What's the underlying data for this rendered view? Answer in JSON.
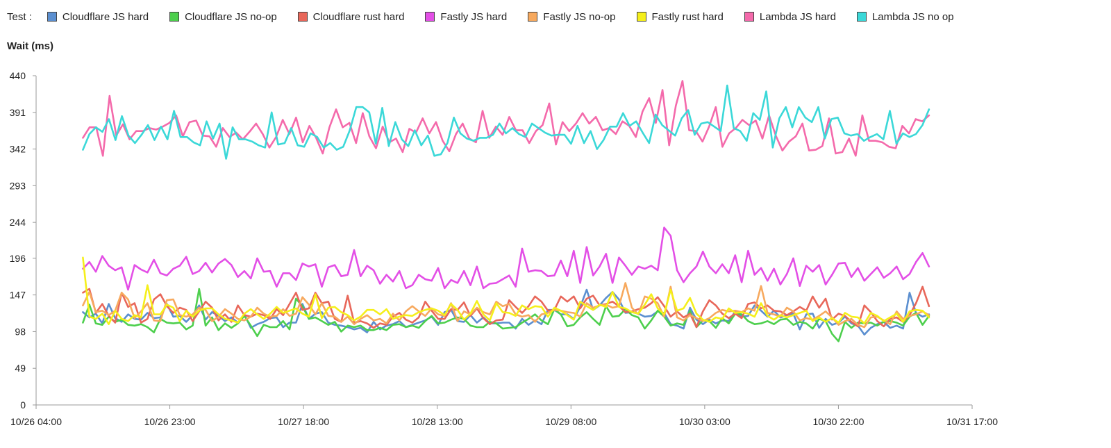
{
  "chart_data": {
    "type": "line",
    "legend_title": "Test :",
    "ylabel": "Wait (ms)",
    "xlabel": "",
    "ylim": [
      0,
      440
    ],
    "y_ticks": [
      "0",
      "49",
      "98",
      "147",
      "196",
      "244",
      "293",
      "342",
      "391",
      "440"
    ],
    "x_ticks": [
      "10/26 04:00",
      "10/26 23:00",
      "10/27 18:00",
      "10/28 13:00",
      "10/29 08:00",
      "10/30 03:00",
      "10/30 22:00",
      "10/31 17:00"
    ],
    "x_range_hours": [
      0,
      154
    ],
    "x_start_hours": 7.7,
    "x_end_hours": 146.9,
    "legend_position": "top",
    "grid": false,
    "series": [
      {
        "name": "Cloudflare JS hard",
        "color": "#5b8fd0",
        "values": [
          124,
          117,
          122,
          109,
          135,
          116,
          111,
          121,
          115,
          114,
          123,
          116,
          117,
          135,
          118,
          119,
          111,
          120,
          133,
          114,
          124,
          119,
          112,
          117,
          110,
          121,
          103,
          108,
          111,
          116,
          117,
          104,
          110,
          110,
          135,
          115,
          122,
          124,
          110,
          107,
          106,
          104,
          101,
          103,
          97,
          111,
          101,
          106,
          108,
          112,
          104,
          107,
          110,
          113,
          118,
          107,
          124,
          127,
          112,
          111,
          120,
          110,
          117,
          109,
          109,
          110,
          110,
          102,
          115,
          107,
          113,
          108,
          127,
          127,
          121,
          121,
          115,
          131,
          154,
          127,
          133,
          143,
          151,
          141,
          123,
          124,
          122,
          118,
          119,
          125,
          123,
          108,
          106,
          102,
          130,
          114,
          108,
          114,
          109,
          113,
          112,
          125,
          118,
          119,
          133,
          126,
          118,
          126,
          117,
          120,
          122,
          101,
          121,
          122,
          103,
          115,
          107,
          110,
          118,
          109,
          106,
          94,
          103,
          108,
          111,
          103,
          106,
          102,
          150,
          123,
          118,
          121
        ]
      },
      {
        "name": "Cloudflare JS no-op",
        "color": "#4dcf4d",
        "values": [
          110,
          134,
          109,
          107,
          118,
          111,
          114,
          107,
          106,
          108,
          104,
          97,
          115,
          110,
          109,
          110,
          101,
          106,
          155,
          106,
          117,
          100,
          109,
          103,
          109,
          119,
          106,
          92,
          107,
          104,
          104,
          112,
          101,
          142,
          132,
          115,
          117,
          112,
          107,
          111,
          98,
          106,
          104,
          106,
          100,
          100,
          103,
          100,
          107,
          108,
          104,
          106,
          103,
          112,
          119,
          109,
          110,
          114,
          117,
          115,
          106,
          104,
          104,
          111,
          109,
          102,
          103,
          104,
          110,
          115,
          121,
          113,
          108,
          128,
          121,
          105,
          107,
          117,
          124,
          115,
          107,
          132,
          118,
          119,
          128,
          120,
          117,
          102,
          113,
          126,
          118,
          106,
          109,
          107,
          126,
          104,
          113,
          112,
          103,
          116,
          109,
          122,
          121,
          112,
          108,
          109,
          112,
          108,
          114,
          115,
          107,
          111,
          109,
          102,
          115,
          112,
          95,
          85,
          111,
          103,
          110,
          109,
          110,
          106,
          111,
          112,
          110,
          106,
          118,
          123,
          107,
          119
        ]
      },
      {
        "name": "Cloudflare rust hard",
        "color": "#e8675a",
        "values": [
          150,
          155,
          123,
          135,
          119,
          110,
          150,
          131,
          136,
          110,
          115,
          141,
          148,
          132,
          123,
          130,
          127,
          112,
          125,
          138,
          130,
          113,
          121,
          111,
          133,
          120,
          118,
          122,
          120,
          115,
          128,
          120,
          135,
          150,
          127,
          129,
          150,
          136,
          138,
          115,
          111,
          146,
          110,
          112,
          109,
          103,
          109,
          107,
          118,
          123,
          114,
          110,
          117,
          138,
          126,
          115,
          115,
          128,
          127,
          137,
          119,
          129,
          116,
          108,
          113,
          114,
          140,
          131,
          123,
          132,
          145,
          138,
          126,
          127,
          145,
          138,
          145,
          129,
          142,
          146,
          133,
          135,
          138,
          132,
          124,
          125,
          128,
          130,
          136,
          144,
          132,
          118,
          125,
          117,
          122,
          104,
          125,
          140,
          133,
          122,
          116,
          122,
          116,
          135,
          137,
          129,
          133,
          126,
          125,
          120,
          125,
          131,
          126,
          145,
          130,
          142,
          114,
          122,
          119,
          111,
          105,
          133,
          124,
          112,
          105,
          115,
          117,
          111,
          120,
          136,
          158,
          132
        ]
      },
      {
        "name": "Fastly JS hard",
        "color": "#e34fe6",
        "values": [
          182,
          191,
          178,
          199,
          186,
          180,
          184,
          154,
          187,
          181,
          177,
          194,
          176,
          173,
          182,
          186,
          198,
          175,
          179,
          190,
          177,
          189,
          195,
          187,
          171,
          179,
          169,
          196,
          178,
          179,
          158,
          176,
          176,
          167,
          189,
          185,
          188,
          158,
          184,
          187,
          172,
          174,
          207,
          172,
          186,
          180,
          162,
          174,
          165,
          179,
          156,
          160,
          174,
          168,
          166,
          183,
          156,
          167,
          163,
          179,
          160,
          185,
          156,
          162,
          163,
          168,
          173,
          158,
          209,
          178,
          180,
          179,
          172,
          173,
          193,
          172,
          206,
          163,
          211,
          173,
          185,
          202,
          163,
          197,
          186,
          174,
          185,
          182,
          186,
          180,
          237,
          226,
          180,
          164,
          176,
          185,
          205,
          185,
          176,
          188,
          176,
          200,
          164,
          206,
          174,
          183,
          166,
          182,
          161,
          175,
          196,
          159,
          186,
          178,
          187,
          161,
          174,
          189,
          190,
          171,
          183,
          166,
          175,
          184,
          170,
          176,
          185,
          168,
          175,
          191,
          203,
          185
        ]
      },
      {
        "name": "Fastly JS no-op",
        "color": "#f7a95e",
        "values": [
          133,
          151,
          124,
          126,
          120,
          126,
          150,
          141,
          116,
          125,
          136,
          113,
          112,
          140,
          141,
          120,
          118,
          121,
          130,
          127,
          112,
          118,
          128,
          122,
          115,
          113,
          118,
          130,
          122,
          118,
          119,
          128,
          119,
          122,
          144,
          134,
          121,
          136,
          119,
          118,
          111,
          118,
          108,
          115,
          120,
          113,
          115,
          109,
          122,
          113,
          125,
          132,
          125,
          119,
          129,
          121,
          119,
          136,
          112,
          125,
          121,
          130,
          124,
          121,
          138,
          132,
          135,
          121,
          118,
          120,
          111,
          121,
          123,
          127,
          126,
          124,
          123,
          118,
          136,
          130,
          133,
          134,
          130,
          132,
          163,
          130,
          121,
          145,
          142,
          136,
          118,
          158,
          117,
          113,
          120,
          116,
          112,
          116,
          123,
          127,
          125,
          126,
          124,
          129,
          126,
          159,
          123,
          121,
          118,
          130,
          125,
          113,
          116,
          114,
          119,
          125,
          117,
          107,
          112,
          115,
          107,
          104,
          117,
          118,
          113,
          108,
          125,
          115,
          119,
          121,
          125,
          120
        ]
      },
      {
        "name": "Fastly rust hard",
        "color": "#f5ef1b",
        "values": [
          197,
          118,
          115,
          122,
          108,
          126,
          115,
          112,
          120,
          117,
          160,
          121,
          121,
          134,
          130,
          112,
          126,
          118,
          126,
          129,
          129,
          121,
          115,
          113,
          110,
          122,
          128,
          121,
          115,
          122,
          131,
          123,
          126,
          129,
          122,
          118,
          148,
          116,
          130,
          131,
          124,
          120,
          113,
          118,
          127,
          127,
          121,
          128,
          115,
          118,
          120,
          119,
          124,
          127,
          129,
          126,
          120,
          135,
          127,
          114,
          122,
          139,
          121,
          113,
          136,
          124,
          123,
          119,
          133,
          128,
          132,
          131,
          118,
          130,
          126,
          120,
          114,
          138,
          132,
          127,
          134,
          131,
          151,
          131,
          129,
          124,
          122,
          134,
          148,
          129,
          121,
          154,
          126,
          129,
          143,
          122,
          114,
          111,
          117,
          115,
          129,
          123,
          124,
          122,
          118,
          136,
          119,
          114,
          120,
          117,
          120,
          123,
          126,
          112,
          117,
          111,
          116,
          110,
          123,
          118,
          117,
          109,
          123,
          119,
          112,
          117,
          122,
          111,
          125,
          127,
          126,
          117
        ]
      },
      {
        "name": "Lambda JS hard",
        "color": "#f46aab",
        "values": [
          357,
          371,
          371,
          333,
          413,
          360,
          375,
          355,
          366,
          366,
          370,
          368,
          372,
          377,
          387,
          359,
          378,
          380,
          360,
          359,
          345,
          370,
          358,
          364,
          355,
          365,
          376,
          362,
          344,
          358,
          381,
          362,
          384,
          351,
          373,
          357,
          336,
          371,
          395,
          371,
          377,
          350,
          390,
          359,
          343,
          372,
          351,
          356,
          338,
          369,
          364,
          383,
          363,
          378,
          353,
          339,
          362,
          376,
          356,
          351,
          393,
          357,
          372,
          361,
          385,
          367,
          367,
          350,
          366,
          374,
          403,
          348,
          378,
          366,
          376,
          390,
          376,
          385,
          367,
          370,
          362,
          379,
          373,
          358,
          392,
          410,
          377,
          421,
          347,
          400,
          433,
          367,
          366,
          352,
          372,
          398,
          345,
          363,
          370,
          381,
          374,
          380,
          356,
          387,
          360,
          340,
          352,
          359,
          376,
          340,
          341,
          346,
          383,
          336,
          338,
          356,
          333,
          387,
          353,
          353,
          351,
          345,
          343,
          373,
          363,
          382,
          379,
          387
        ]
      },
      {
        "name": "Lambda JS no op",
        "color": "#3bd8d8",
        "values": [
          341,
          362,
          371,
          365,
          382,
          354,
          386,
          360,
          350,
          361,
          374,
          354,
          372,
          355,
          393,
          358,
          358,
          351,
          347,
          379,
          356,
          376,
          329,
          371,
          355,
          355,
          352,
          347,
          344,
          391,
          348,
          350,
          370,
          347,
          345,
          363,
          358,
          344,
          350,
          341,
          345,
          367,
          398,
          398,
          391,
          349,
          397,
          346,
          378,
          355,
          346,
          367,
          347,
          360,
          333,
          335,
          350,
          384,
          363,
          356,
          353,
          357,
          357,
          361,
          376,
          363,
          370,
          362,
          358,
          376,
          370,
          364,
          360,
          361,
          361,
          349,
          373,
          350,
          366,
          342,
          354,
          372,
          372,
          390,
          373,
          379,
          364,
          350,
          388,
          374,
          367,
          360,
          383,
          394,
          361,
          376,
          378,
          372,
          366,
          427,
          370,
          366,
          353,
          390,
          381,
          419,
          344,
          383,
          398,
          371,
          398,
          384,
          378,
          398,
          356,
          382,
          384,
          363,
          360,
          362,
          353,
          358,
          362,
          355,
          393,
          349,
          363,
          358,
          362,
          374,
          395
        ]
      }
    ]
  }
}
